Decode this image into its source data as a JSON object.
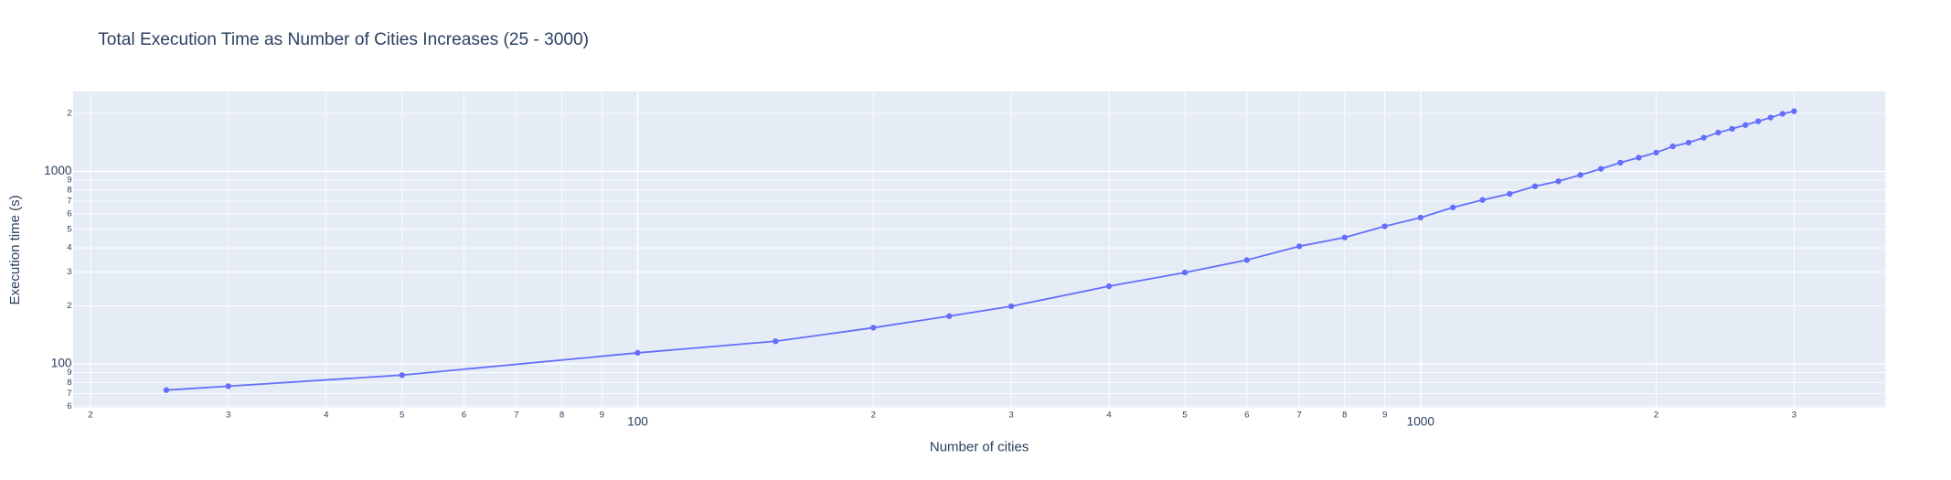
{
  "chart_data": {
    "type": "line",
    "title": "Total Execution Time as Number of Cities Increases (25 - 3000)",
    "x_label": "Number of cities",
    "y_label": "Execution time (s)",
    "x": [
      25,
      30,
      50,
      100,
      150,
      200,
      250,
      300,
      400,
      500,
      600,
      700,
      800,
      900,
      1000,
      1100,
      1200,
      1300,
      1400,
      1500,
      1600,
      1700,
      1800,
      1900,
      2000,
      2100,
      2200,
      2300,
      2400,
      2500,
      2600,
      2700,
      2800,
      2900,
      3000
    ],
    "series": [
      {
        "name": "Execution time",
        "color": "#636efa",
        "values": [
          73,
          76.5,
          87.4,
          114,
          131,
          154,
          177,
          199,
          253,
          298,
          346,
          408,
          453,
          518,
          575,
          649,
          710,
          764,
          836,
          888,
          957,
          1031,
          1110,
          1178,
          1251,
          1348,
          1410,
          1496,
          1589,
          1663,
          1740,
          1820,
          1903,
          1990,
          2052
        ]
      }
    ],
    "x_log": true,
    "y_log": true,
    "grid": true,
    "xlim": [
      19,
      3925
    ],
    "ylim": [
      59.3,
      2606
    ],
    "xticks": [
      {
        "value": 20,
        "label": "2"
      },
      {
        "value": 30,
        "label": "3"
      },
      {
        "value": 40,
        "label": "4"
      },
      {
        "value": 50,
        "label": "5"
      },
      {
        "value": 60,
        "label": "6"
      },
      {
        "value": 70,
        "label": "7"
      },
      {
        "value": 80,
        "label": "8"
      },
      {
        "value": 90,
        "label": "9"
      },
      100,
      {
        "value": 200,
        "label": "2"
      },
      {
        "value": 300,
        "label": "3"
      },
      {
        "value": 400,
        "label": "4"
      },
      {
        "value": 500,
        "label": "5"
      },
      {
        "value": 600,
        "label": "6"
      },
      {
        "value": 700,
        "label": "7"
      },
      {
        "value": 800,
        "label": "8"
      },
      {
        "value": 900,
        "label": "9"
      },
      1000,
      {
        "value": 2000,
        "label": "2"
      },
      {
        "value": 3000,
        "label": "3"
      }
    ],
    "yticks": [
      {
        "value": 60,
        "label": "6"
      },
      {
        "value": 70,
        "label": "7"
      },
      {
        "value": 80,
        "label": "8"
      },
      {
        "value": 90,
        "label": "9"
      },
      100,
      {
        "value": 200,
        "label": "2"
      },
      {
        "value": 300,
        "label": "3"
      },
      {
        "value": 400,
        "label": "4"
      },
      {
        "value": 500,
        "label": "5"
      },
      {
        "value": 600,
        "label": "6"
      },
      {
        "value": 700,
        "label": "7"
      },
      {
        "value": 800,
        "label": "8"
      },
      {
        "value": 900,
        "label": "9"
      },
      1000,
      {
        "value": 2000,
        "label": "2"
      }
    ]
  }
}
